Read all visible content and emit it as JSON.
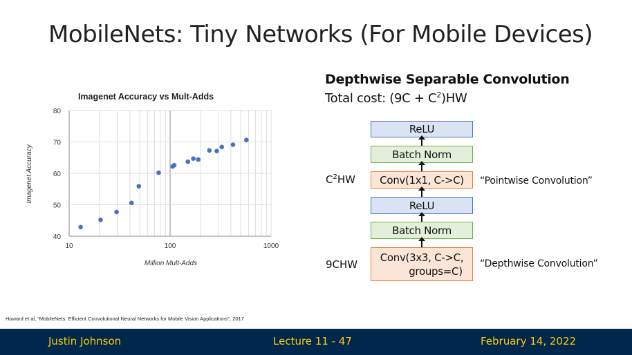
{
  "slide": {
    "title": "MobileNets: Tiny Networks (For Mobile Devices)",
    "citation": "Howard et al, “MobileNets: Efficient Convolutional Neural Networks for Mobile Vision Applications”, 2017"
  },
  "chart_data": {
    "type": "scatter",
    "title": "Imagenet Accuracy vs Mult-Adds",
    "xlabel": "Million Mult-Adds",
    "ylabel": "Imagenet Accuracy",
    "xscale": "log",
    "xlim": [
      10,
      1000
    ],
    "ylim": [
      40,
      80
    ],
    "xticks": [
      "10",
      "100",
      "1000"
    ],
    "yticks": [
      "40",
      "50",
      "60",
      "70",
      "80"
    ],
    "grid": true,
    "color": "#4472c4",
    "points": [
      {
        "x": 13,
        "y": 42.9
      },
      {
        "x": 20.5,
        "y": 45.2
      },
      {
        "x": 29.5,
        "y": 47.7
      },
      {
        "x": 41.5,
        "y": 50.6
      },
      {
        "x": 49,
        "y": 55.9
      },
      {
        "x": 77,
        "y": 60.2
      },
      {
        "x": 106,
        "y": 62.2
      },
      {
        "x": 110,
        "y": 62.6
      },
      {
        "x": 150,
        "y": 63.7
      },
      {
        "x": 170,
        "y": 64.7
      },
      {
        "x": 190,
        "y": 64.4
      },
      {
        "x": 245,
        "y": 67.3
      },
      {
        "x": 290,
        "y": 67.1
      },
      {
        "x": 325,
        "y": 68.4
      },
      {
        "x": 420,
        "y": 69.1
      },
      {
        "x": 570,
        "y": 70.6
      }
    ]
  },
  "diagram": {
    "heading": "Depthwise Separable Convolution",
    "total_cost_prefix": "Total cost: (9C + C",
    "total_cost_sup": "2",
    "total_cost_suffix": ")HW",
    "boxes": {
      "relu_top": "ReLU",
      "bn_top": "Batch Norm",
      "conv_pointwise": "Conv(1x1, C->C)",
      "relu_mid": "ReLU",
      "bn_bottom": "Batch Norm",
      "conv_depthwise_line1": "Conv(3x3, C->C,",
      "conv_depthwise_line2": "groups=C)"
    },
    "cost_pointwise_prefix": "C",
    "cost_pointwise_sup": "2",
    "cost_pointwise_suffix": "HW",
    "cost_depthwise": "9CHW",
    "label_pointwise": "“Pointwise Convolution”",
    "label_depthwise": "“Depthwise Convolution”",
    "colors": {
      "relu_fill": "#dae3f3",
      "relu_border": "#4472c4",
      "bn_fill": "#e2f0d9",
      "bn_border": "#70ad47",
      "conv_fill": "#fbe5d6",
      "conv_border": "#ed7d31"
    }
  },
  "footer": {
    "author": "Justin Johnson",
    "lecture": "Lecture 11 - 47",
    "date": "February 14, 2022",
    "background": "#00274c",
    "text_color": "#ffcb05"
  }
}
